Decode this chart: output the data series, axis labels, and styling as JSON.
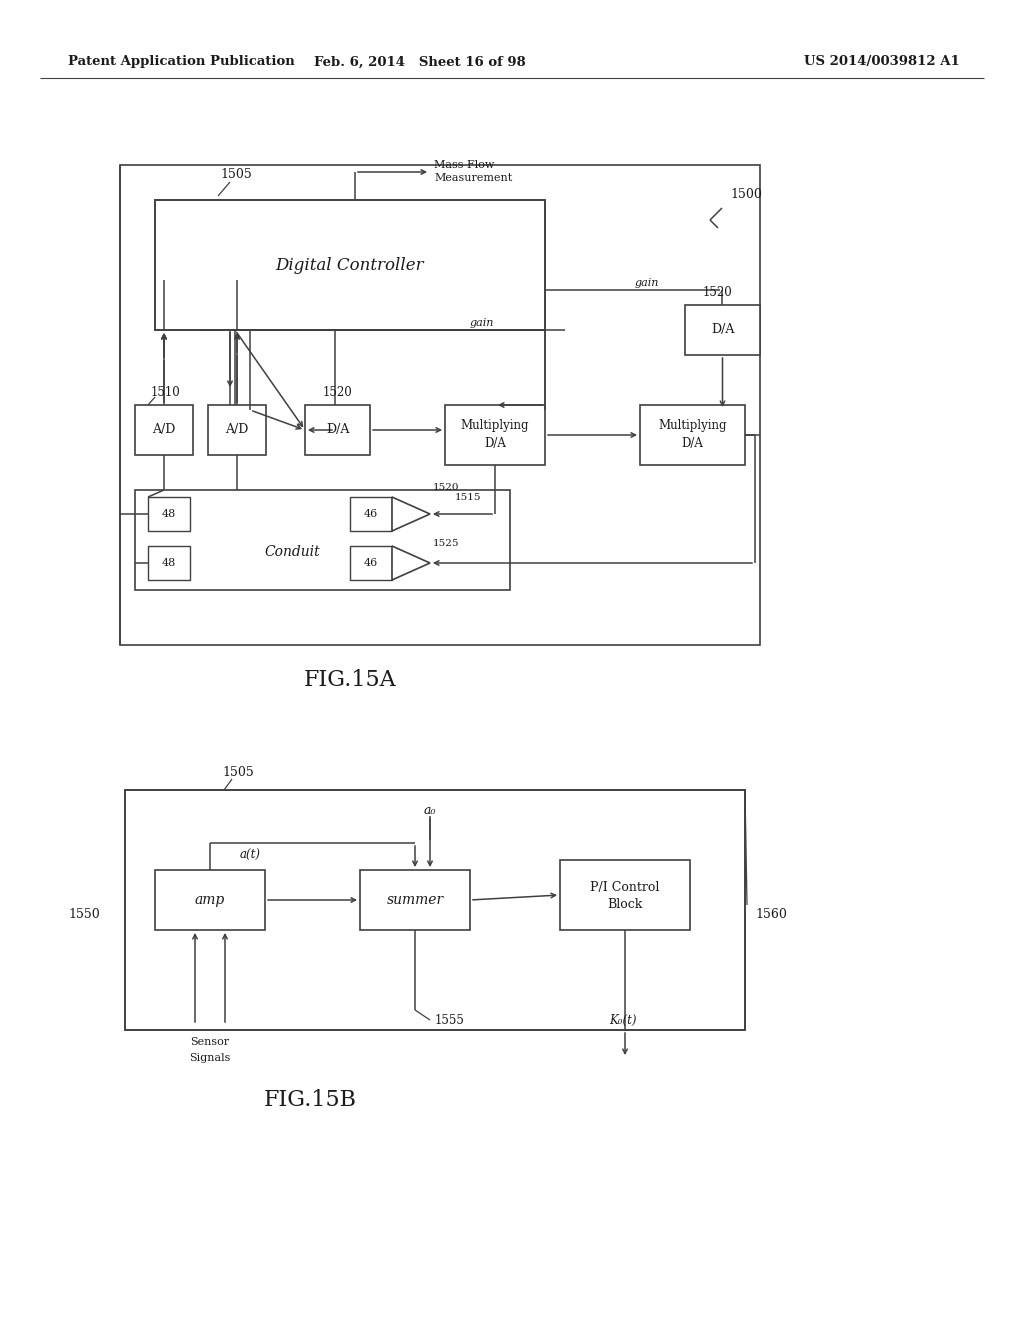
{
  "header_left": "Patent Application Publication",
  "header_mid": "Feb. 6, 2014   Sheet 16 of 98",
  "header_right": "US 2014/0039812 A1",
  "fig_label_a": "FIG.15A",
  "fig_label_b": "FIG.15B",
  "bg_color": "#ffffff",
  "line_color": "#404040",
  "text_color": "#1a1a1a"
}
